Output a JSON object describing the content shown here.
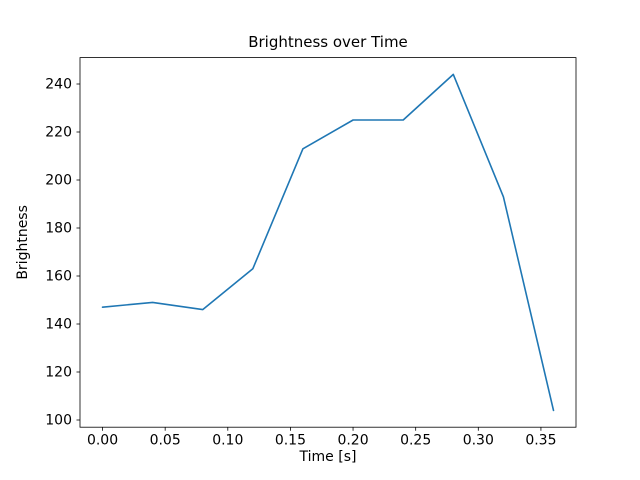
{
  "figure": {
    "background_color": "#ffffff",
    "axes_background_color": "#ffffff",
    "spine_color": "#000000",
    "text_color": "#000000"
  },
  "chart_data": {
    "type": "line",
    "title": "Brightness over Time",
    "xlabel": "Time [s]",
    "ylabel": "Brightness",
    "x": [
      0.0,
      0.04,
      0.08,
      0.12,
      0.16,
      0.2,
      0.24,
      0.28,
      0.32,
      0.36
    ],
    "y": [
      147,
      149,
      146,
      163,
      213,
      225,
      225,
      244,
      193,
      104
    ],
    "xlim": [
      -0.018,
      0.378
    ],
    "ylim": [
      97,
      251
    ],
    "xticks": [
      0.0,
      0.05,
      0.1,
      0.15,
      0.2,
      0.25,
      0.3,
      0.35
    ],
    "xtick_labels": [
      "0.00",
      "0.05",
      "0.10",
      "0.15",
      "0.20",
      "0.25",
      "0.30",
      "0.35"
    ],
    "yticks": [
      100,
      120,
      140,
      160,
      180,
      200,
      220,
      240
    ],
    "ytick_labels": [
      "100",
      "120",
      "140",
      "160",
      "180",
      "200",
      "220",
      "240"
    ],
    "line_color": "#1f77b4",
    "line_width": 1.6,
    "grid": false,
    "legend": null
  }
}
